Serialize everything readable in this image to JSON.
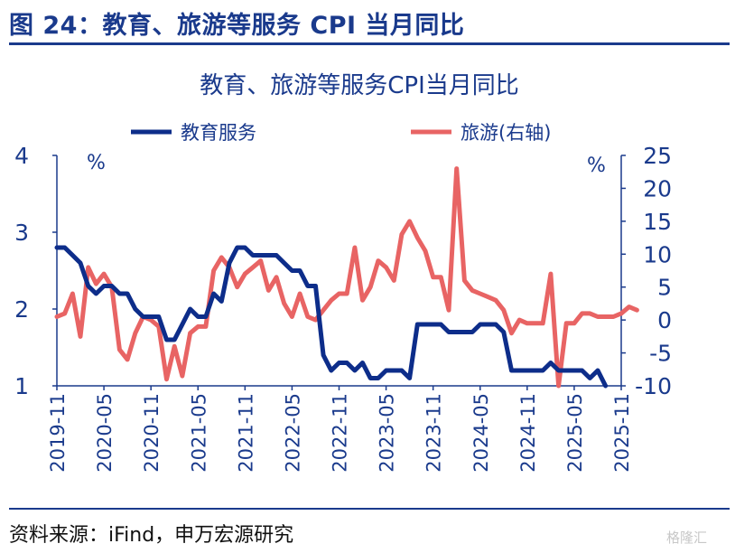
{
  "figure_title": "图 24：教育、旅游等服务 CPI 当月同比",
  "source": "资料来源：iFind，申万宏源研究",
  "watermark": "格隆汇",
  "colors": {
    "education": "#0d2d8a",
    "tourism": "#e86464",
    "text": "#1a3a8c"
  },
  "chart_data": {
    "type": "line",
    "title": "教育、旅游等服务CPI当月同比",
    "legend_position": "top",
    "grid": false,
    "x_tick_labels": [
      "2019-11",
      "2020-05",
      "2020-11",
      "2021-05",
      "2021-11",
      "2022-05",
      "2022-11",
      "2023-05",
      "2023-11",
      "2024-05",
      "2024-11",
      "2025-05",
      "2025-11"
    ],
    "left_axis": {
      "unit": "%",
      "ylim": [
        1,
        4
      ],
      "ticks": [
        1,
        2,
        3,
        4
      ]
    },
    "right_axis": {
      "unit": "%",
      "ylim": [
        -10,
        25
      ],
      "ticks": [
        -10,
        -5,
        0,
        5,
        10,
        15,
        20,
        25
      ]
    },
    "series": [
      {
        "name": "教育服务",
        "axis": "left",
        "start": "2019-11",
        "values": [
          2.8,
          2.8,
          2.7,
          2.6,
          2.3,
          2.2,
          2.3,
          2.3,
          2.2,
          2.2,
          2.0,
          1.9,
          1.9,
          1.9,
          1.6,
          1.6,
          1.8,
          2.0,
          1.9,
          1.9,
          2.2,
          2.1,
          2.6,
          2.8,
          2.8,
          2.7,
          2.7,
          2.7,
          2.7,
          2.6,
          2.5,
          2.5,
          2.3,
          2.3,
          1.4,
          1.2,
          1.3,
          1.3,
          1.2,
          1.3,
          1.1,
          1.1,
          1.2,
          1.2,
          1.2,
          1.1,
          1.8,
          1.8,
          1.8,
          1.8,
          1.7,
          1.7,
          1.7,
          1.7,
          1.8,
          1.8,
          1.8,
          1.7,
          1.2,
          1.2,
          1.2,
          1.2,
          1.2,
          1.3,
          1.2,
          1.2,
          1.2,
          1.2,
          1.1,
          1.2,
          1.0
        ]
      },
      {
        "name": "旅游(右轴)",
        "axis": "right",
        "start": "2019-11",
        "values": [
          0.5,
          1.0,
          4.0,
          -2.5,
          8.0,
          5.5,
          7.0,
          5.0,
          -4.5,
          -6.0,
          -2.0,
          0.5,
          0.0,
          -1.0,
          -9.0,
          -4.0,
          -8.5,
          -2.0,
          -1.0,
          -1.0,
          7.5,
          9.5,
          8.0,
          5.0,
          7.0,
          8.0,
          9.0,
          4.5,
          6.5,
          2.5,
          0.5,
          4.0,
          0.5,
          0.0,
          1.5,
          3.0,
          4.0,
          4.0,
          11.0,
          3.0,
          5.0,
          9.0,
          8.0,
          6.0,
          13.0,
          15.0,
          12.5,
          10.5,
          6.5,
          6.5,
          1.5,
          23.0,
          6.0,
          4.5,
          4.0,
          3.5,
          3.0,
          1.5,
          -2.0,
          0.0,
          -0.5,
          -0.5,
          -0.5,
          7.0,
          -10.0,
          -0.5,
          -0.5,
          1.0,
          1.0,
          0.5,
          0.5,
          0.5,
          1.0,
          2.0,
          1.5
        ]
      }
    ]
  }
}
